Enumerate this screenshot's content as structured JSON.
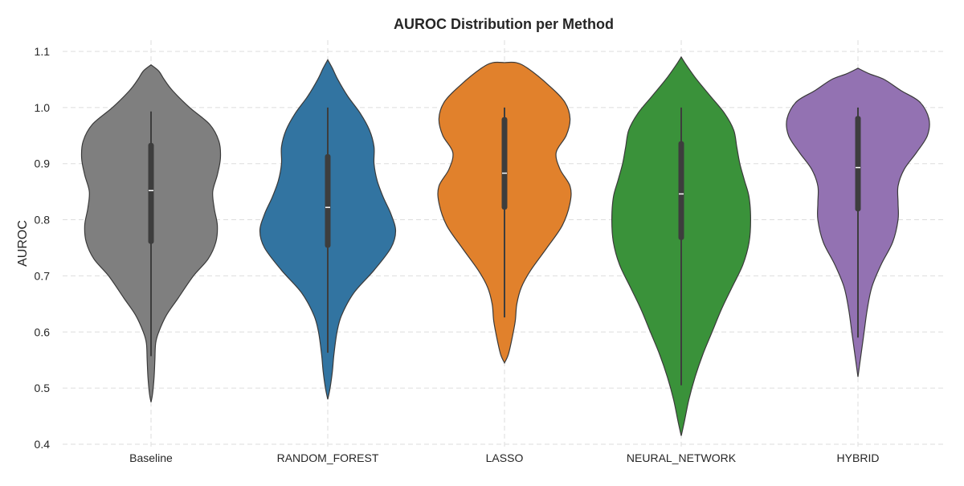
{
  "chart_data": {
    "type": "violin",
    "title": "AUROC Distribution per Method",
    "xlabel": "",
    "ylabel": "AUROC",
    "ylim": [
      0.39,
      1.12
    ],
    "yticks": [
      0.4,
      0.5,
      0.6,
      0.7,
      0.8,
      0.9,
      1.0,
      1.1
    ],
    "grid": true,
    "categories": [
      "Baseline",
      "RANDOM_FOREST",
      "LASSO",
      "NEURAL_NETWORK",
      "HYBRID"
    ],
    "colors": [
      "#7f7f7f",
      "#3274a1",
      "#e1812c",
      "#3a923a",
      "#9372b2"
    ],
    "series": [
      {
        "category": "Baseline",
        "median": 0.852,
        "q1": 0.757,
        "q3": 0.937,
        "whisker_low": 0.557,
        "whisker_high": 0.993,
        "density": [
          [
            0.475,
            0.0
          ],
          [
            0.49,
            0.02
          ],
          [
            0.52,
            0.04
          ],
          [
            0.55,
            0.05
          ],
          [
            0.58,
            0.06
          ],
          [
            0.6,
            0.1
          ],
          [
            0.63,
            0.2
          ],
          [
            0.66,
            0.35
          ],
          [
            0.7,
            0.55
          ],
          [
            0.73,
            0.74
          ],
          [
            0.76,
            0.84
          ],
          [
            0.79,
            0.86
          ],
          [
            0.82,
            0.82
          ],
          [
            0.85,
            0.8
          ],
          [
            0.88,
            0.86
          ],
          [
            0.91,
            0.9
          ],
          [
            0.94,
            0.88
          ],
          [
            0.97,
            0.76
          ],
          [
            1.0,
            0.5
          ],
          [
            1.03,
            0.28
          ],
          [
            1.05,
            0.17
          ],
          [
            1.065,
            0.1
          ],
          [
            1.076,
            0.0
          ]
        ]
      },
      {
        "category": "RANDOM_FOREST",
        "median": 0.822,
        "q1": 0.75,
        "q3": 0.917,
        "whisker_low": 0.563,
        "whisker_high": 1.0,
        "density": [
          [
            0.48,
            0.0
          ],
          [
            0.5,
            0.03
          ],
          [
            0.53,
            0.06
          ],
          [
            0.56,
            0.08
          ],
          [
            0.6,
            0.12
          ],
          [
            0.63,
            0.18
          ],
          [
            0.67,
            0.34
          ],
          [
            0.71,
            0.6
          ],
          [
            0.75,
            0.82
          ],
          [
            0.78,
            0.88
          ],
          [
            0.81,
            0.82
          ],
          [
            0.84,
            0.72
          ],
          [
            0.87,
            0.64
          ],
          [
            0.9,
            0.6
          ],
          [
            0.93,
            0.6
          ],
          [
            0.96,
            0.54
          ],
          [
            0.99,
            0.42
          ],
          [
            1.02,
            0.26
          ],
          [
            1.05,
            0.13
          ],
          [
            1.07,
            0.06
          ],
          [
            1.085,
            0.0
          ]
        ]
      },
      {
        "category": "LASSO",
        "median": 0.883,
        "q1": 0.818,
        "q3": 0.983,
        "whisker_low": 0.626,
        "whisker_high": 1.0,
        "density": [
          [
            0.545,
            0.0
          ],
          [
            0.56,
            0.05
          ],
          [
            0.59,
            0.1
          ],
          [
            0.62,
            0.14
          ],
          [
            0.65,
            0.16
          ],
          [
            0.68,
            0.22
          ],
          [
            0.71,
            0.34
          ],
          [
            0.75,
            0.55
          ],
          [
            0.79,
            0.75
          ],
          [
            0.83,
            0.85
          ],
          [
            0.86,
            0.85
          ],
          [
            0.89,
            0.72
          ],
          [
            0.92,
            0.67
          ],
          [
            0.95,
            0.8
          ],
          [
            0.98,
            0.85
          ],
          [
            1.01,
            0.78
          ],
          [
            1.04,
            0.57
          ],
          [
            1.07,
            0.3
          ],
          [
            1.08,
            0.15
          ],
          [
            1.08,
            0.0
          ]
        ]
      },
      {
        "category": "NEURAL_NETWORK",
        "median": 0.846,
        "q1": 0.764,
        "q3": 0.94,
        "whisker_low": 0.505,
        "whisker_high": 1.0,
        "density": [
          [
            0.415,
            0.0
          ],
          [
            0.44,
            0.04
          ],
          [
            0.48,
            0.1
          ],
          [
            0.52,
            0.18
          ],
          [
            0.56,
            0.28
          ],
          [
            0.6,
            0.4
          ],
          [
            0.64,
            0.52
          ],
          [
            0.68,
            0.66
          ],
          [
            0.72,
            0.8
          ],
          [
            0.76,
            0.88
          ],
          [
            0.8,
            0.9
          ],
          [
            0.84,
            0.88
          ],
          [
            0.87,
            0.82
          ],
          [
            0.9,
            0.76
          ],
          [
            0.93,
            0.72
          ],
          [
            0.96,
            0.68
          ],
          [
            0.99,
            0.56
          ],
          [
            1.02,
            0.38
          ],
          [
            1.05,
            0.2
          ],
          [
            1.075,
            0.07
          ],
          [
            1.09,
            0.0
          ]
        ]
      },
      {
        "category": "HYBRID",
        "median": 0.893,
        "q1": 0.815,
        "q3": 0.985,
        "whisker_low": 0.59,
        "whisker_high": 1.0,
        "density": [
          [
            0.52,
            0.0
          ],
          [
            0.54,
            0.02
          ],
          [
            0.57,
            0.05
          ],
          [
            0.6,
            0.08
          ],
          [
            0.64,
            0.12
          ],
          [
            0.68,
            0.18
          ],
          [
            0.72,
            0.3
          ],
          [
            0.76,
            0.45
          ],
          [
            0.8,
            0.52
          ],
          [
            0.83,
            0.52
          ],
          [
            0.86,
            0.52
          ],
          [
            0.89,
            0.6
          ],
          [
            0.92,
            0.76
          ],
          [
            0.95,
            0.9
          ],
          [
            0.98,
            0.92
          ],
          [
            1.01,
            0.8
          ],
          [
            1.03,
            0.56
          ],
          [
            1.05,
            0.34
          ],
          [
            1.06,
            0.15
          ],
          [
            1.07,
            0.0
          ]
        ]
      }
    ]
  }
}
